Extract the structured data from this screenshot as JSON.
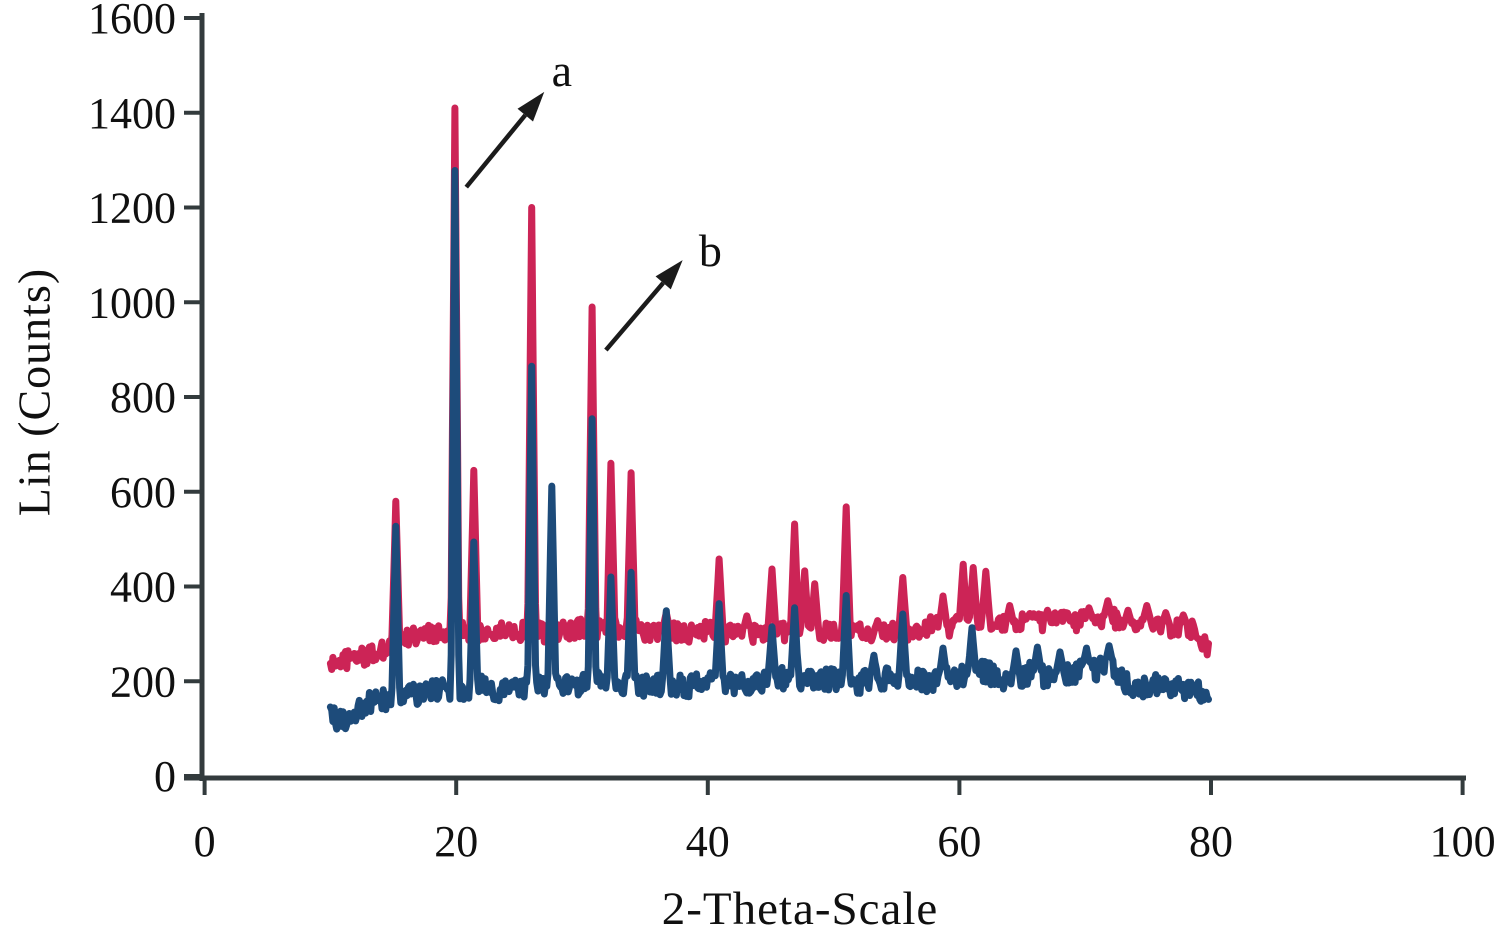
{
  "figure": {
    "background": "#ffffff",
    "axis_color": "#333b3d",
    "text_color": "#101010",
    "annotation_arrow_color": "#1b1b1b"
  },
  "chart_data": {
    "type": "line",
    "title": "",
    "xlabel": "2-Theta-Scale",
    "ylabel": "Lin (Counts)",
    "xlim": [
      0,
      100
    ],
    "ylim": [
      0,
      1600
    ],
    "x_ticks": [
      0,
      20,
      40,
      60,
      80,
      100
    ],
    "y_ticks": [
      0,
      200,
      400,
      600,
      800,
      1000,
      1200,
      1400,
      1600
    ],
    "grid": false,
    "legend": "none",
    "series": [
      {
        "name": "b",
        "color": "#cc2456",
        "x_start": 10,
        "x_end": 79.8,
        "noise_amplitude": 20,
        "baseline": [
          [
            10,
            235
          ],
          [
            11,
            245
          ],
          [
            12,
            250
          ],
          [
            13,
            255
          ],
          [
            14,
            262
          ],
          [
            15,
            278
          ],
          [
            16,
            290
          ],
          [
            17,
            296
          ],
          [
            18,
            300
          ],
          [
            19,
            305
          ],
          [
            20,
            308
          ],
          [
            21,
            300
          ],
          [
            22,
            304
          ],
          [
            23,
            300
          ],
          [
            24,
            308
          ],
          [
            25,
            305
          ],
          [
            26,
            308
          ],
          [
            27,
            300
          ],
          [
            28,
            304
          ],
          [
            29,
            308
          ],
          [
            30,
            313
          ],
          [
            31,
            310
          ],
          [
            32,
            313
          ],
          [
            33,
            310
          ],
          [
            34,
            314
          ],
          [
            35,
            305
          ],
          [
            36,
            300
          ],
          [
            37,
            308
          ],
          [
            38,
            300
          ],
          [
            39,
            304
          ],
          [
            40,
            308
          ],
          [
            41,
            304
          ],
          [
            42,
            300
          ],
          [
            43,
            304
          ],
          [
            44,
            300
          ],
          [
            45,
            308
          ],
          [
            46,
            304
          ],
          [
            47,
            312
          ],
          [
            48,
            308
          ],
          [
            49,
            304
          ],
          [
            50,
            308
          ],
          [
            51,
            313
          ],
          [
            52,
            308
          ],
          [
            53,
            304
          ],
          [
            54,
            300
          ],
          [
            55,
            308
          ],
          [
            56,
            304
          ],
          [
            57,
            313
          ],
          [
            58,
            318
          ],
          [
            59,
            313
          ],
          [
            60,
            322
          ],
          [
            61,
            328
          ],
          [
            62,
            332
          ],
          [
            63,
            318
          ],
          [
            64,
            322
          ],
          [
            65,
            328
          ],
          [
            66,
            332
          ],
          [
            67,
            322
          ],
          [
            68,
            328
          ],
          [
            69,
            322
          ],
          [
            70,
            332
          ],
          [
            71,
            328
          ],
          [
            72,
            338
          ],
          [
            73,
            322
          ],
          [
            74,
            318
          ],
          [
            75,
            328
          ],
          [
            76,
            322
          ],
          [
            77,
            313
          ],
          [
            78,
            318
          ],
          [
            79,
            298
          ],
          [
            79.8,
            268
          ]
        ],
        "peaks": [
          [
            15.2,
            580
          ],
          [
            19.9,
            1410
          ],
          [
            21.4,
            645
          ],
          [
            26,
            1200
          ],
          [
            30.8,
            990
          ],
          [
            32.3,
            660
          ],
          [
            33.9,
            640
          ],
          [
            36.7,
            345
          ],
          [
            40.9,
            458
          ],
          [
            43.1,
            338
          ],
          [
            45.1,
            437
          ],
          [
            46.9,
            532
          ],
          [
            47.7,
            433
          ],
          [
            48.5,
            406
          ],
          [
            51,
            568
          ],
          [
            53.5,
            328
          ],
          [
            55.5,
            419
          ],
          [
            58.7,
            380
          ],
          [
            60.3,
            447
          ],
          [
            61.1,
            440
          ],
          [
            62.1,
            432
          ],
          [
            64,
            360
          ],
          [
            65.6,
            343
          ],
          [
            67,
            350
          ],
          [
            68.5,
            345
          ],
          [
            70.3,
            355
          ],
          [
            71.8,
            370
          ],
          [
            73.4,
            350
          ],
          [
            74.9,
            360
          ],
          [
            76.4,
            345
          ],
          [
            77.8,
            340
          ]
        ]
      },
      {
        "name": "a",
        "color": "#1d4b7a",
        "x_start": 10,
        "x_end": 79.8,
        "noise_amplitude": 24,
        "baseline": [
          [
            10,
            128
          ],
          [
            10.6,
            112
          ],
          [
            11.2,
            122
          ],
          [
            11.8,
            108
          ],
          [
            12.4,
            142
          ],
          [
            13,
            152
          ],
          [
            14,
            158
          ],
          [
            15,
            163
          ],
          [
            16,
            168
          ],
          [
            17,
            172
          ],
          [
            18,
            178
          ],
          [
            19,
            182
          ],
          [
            20,
            188
          ],
          [
            21,
            183
          ],
          [
            22,
            188
          ],
          [
            23,
            182
          ],
          [
            24,
            178
          ],
          [
            25,
            188
          ],
          [
            26,
            192
          ],
          [
            27,
            188
          ],
          [
            28,
            192
          ],
          [
            29,
            188
          ],
          [
            30,
            192
          ],
          [
            31,
            197
          ],
          [
            32,
            192
          ],
          [
            33,
            197
          ],
          [
            34,
            192
          ],
          [
            35,
            188
          ],
          [
            36,
            192
          ],
          [
            37,
            197
          ],
          [
            38,
            188
          ],
          [
            39,
            192
          ],
          [
            40,
            197
          ],
          [
            41,
            202
          ],
          [
            42,
            197
          ],
          [
            43,
            192
          ],
          [
            44,
            197
          ],
          [
            45,
            202
          ],
          [
            46,
            207
          ],
          [
            47,
            202
          ],
          [
            48,
            212
          ],
          [
            49,
            202
          ],
          [
            50,
            207
          ],
          [
            51,
            202
          ],
          [
            52,
            197
          ],
          [
            53,
            202
          ],
          [
            54,
            207
          ],
          [
            55,
            202
          ],
          [
            56,
            207
          ],
          [
            57,
            197
          ],
          [
            58,
            202
          ],
          [
            59,
            207
          ],
          [
            60,
            212
          ],
          [
            61,
            217
          ],
          [
            62,
            222
          ],
          [
            63,
            207
          ],
          [
            64,
            202
          ],
          [
            65,
            212
          ],
          [
            66,
            222
          ],
          [
            67,
            207
          ],
          [
            68,
            217
          ],
          [
            69,
            212
          ],
          [
            70,
            227
          ],
          [
            71,
            222
          ],
          [
            72,
            237
          ],
          [
            73,
            197
          ],
          [
            74,
            192
          ],
          [
            75,
            188
          ],
          [
            76,
            192
          ],
          [
            77,
            182
          ],
          [
            78,
            188
          ],
          [
            79,
            182
          ],
          [
            79.8,
            152
          ]
        ],
        "peaks": [
          [
            15.2,
            527
          ],
          [
            19.9,
            1278
          ],
          [
            21.4,
            494
          ],
          [
            26,
            865
          ],
          [
            27.6,
            612
          ],
          [
            30.8,
            754
          ],
          [
            32.3,
            420
          ],
          [
            33.9,
            430
          ],
          [
            36.7,
            349
          ],
          [
            40.9,
            364
          ],
          [
            45.1,
            315
          ],
          [
            46.9,
            355
          ],
          [
            51,
            381
          ],
          [
            53.2,
            255
          ],
          [
            55.5,
            342
          ],
          [
            58.7,
            270
          ],
          [
            61,
            313
          ],
          [
            64.5,
            264
          ],
          [
            66.2,
            272
          ],
          [
            68,
            262
          ],
          [
            70.1,
            270
          ],
          [
            71.9,
            275
          ]
        ]
      }
    ],
    "annotations": [
      {
        "label": "a",
        "points_to_series": "a",
        "text_x": 28.4,
        "text_y": 1490,
        "arrow_from": [
          20.8,
          1243
        ],
        "arrow_to": [
          27.0,
          1444
        ]
      },
      {
        "label": "b",
        "points_to_series": "b",
        "text_x": 40.2,
        "text_y": 1110,
        "arrow_from": [
          31.9,
          899
        ],
        "arrow_to": [
          38.0,
          1089
        ]
      }
    ]
  }
}
